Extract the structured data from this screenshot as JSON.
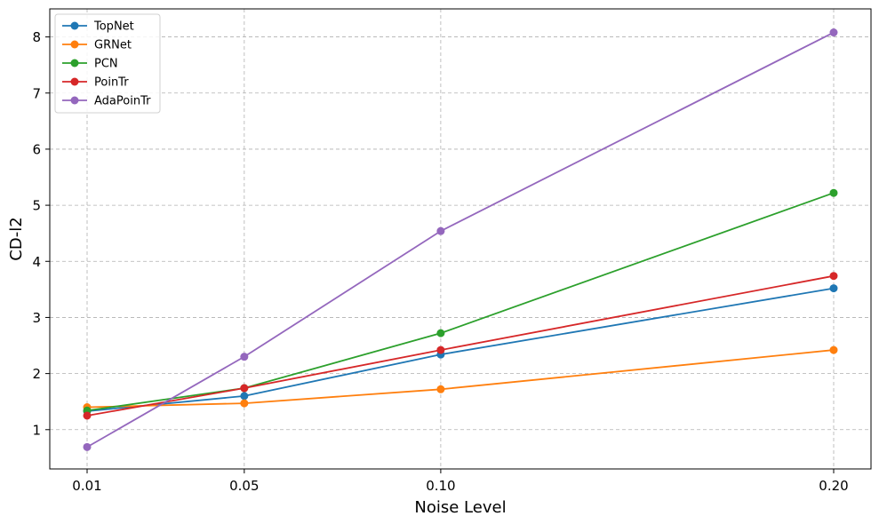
{
  "chart_data": {
    "type": "line",
    "xlabel": "Noise Level",
    "ylabel": "CD-l2",
    "x": [
      0.01,
      0.05,
      0.1,
      0.2
    ],
    "x_tick_labels": [
      "0.01",
      "0.05",
      "0.10",
      "0.20"
    ],
    "ylim": [
      0.3,
      8.5
    ],
    "y_ticks": [
      1,
      2,
      3,
      4,
      5,
      6,
      7,
      8
    ],
    "grid": true,
    "legend_position": "top-left",
    "series": [
      {
        "name": "TopNet",
        "color": "#1f77b4",
        "values": [
          1.33,
          1.6,
          2.34,
          3.52
        ]
      },
      {
        "name": "GRNet",
        "color": "#ff7f0e",
        "values": [
          1.4,
          1.47,
          1.72,
          2.42
        ]
      },
      {
        "name": "PCN",
        "color": "#2ca02c",
        "values": [
          1.34,
          1.74,
          2.72,
          5.22
        ]
      },
      {
        "name": "PoinTr",
        "color": "#d62728",
        "values": [
          1.25,
          1.74,
          2.42,
          3.74
        ]
      },
      {
        "name": "AdaPoinTr",
        "color": "#9467bd",
        "values": [
          0.69,
          2.3,
          4.54,
          8.08
        ]
      }
    ]
  }
}
